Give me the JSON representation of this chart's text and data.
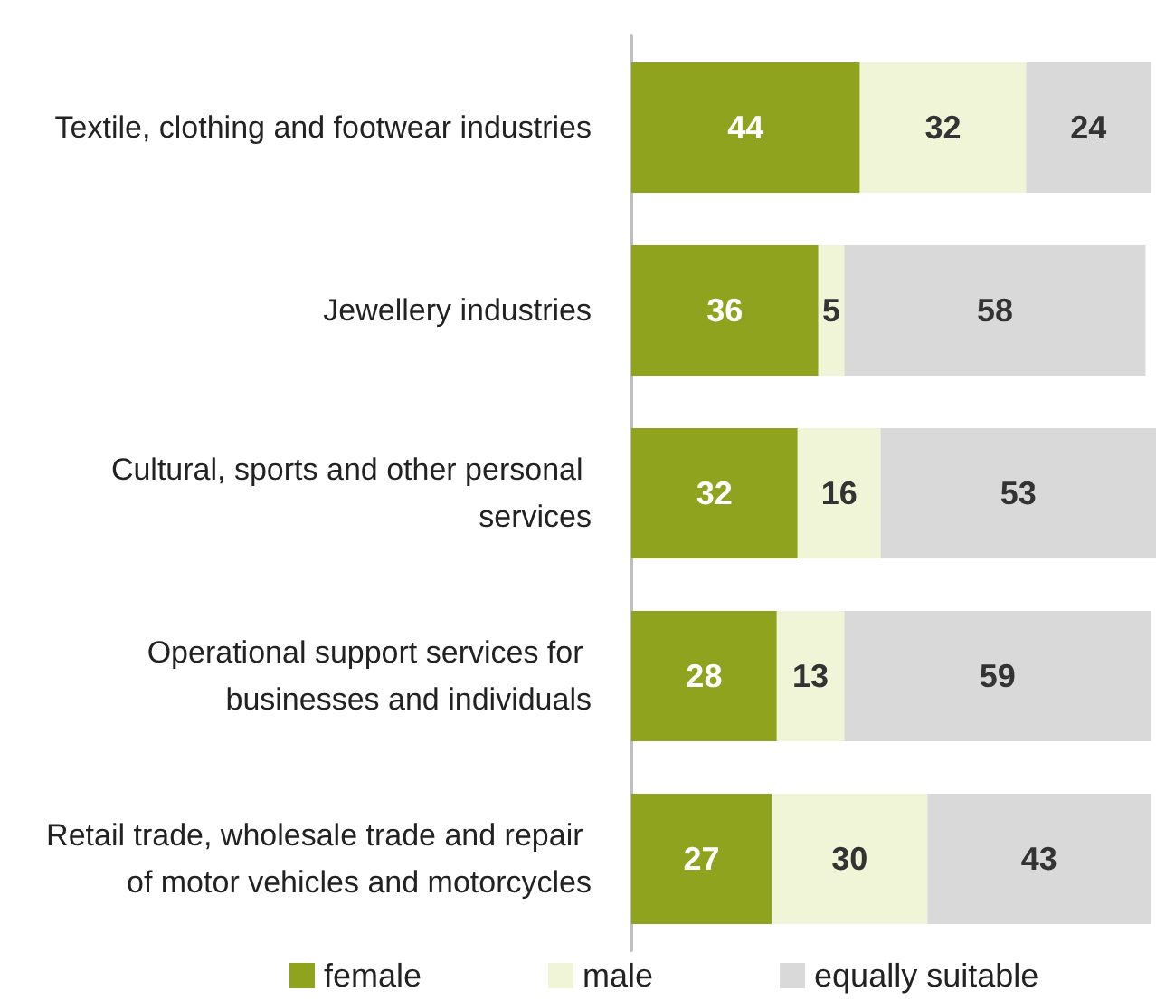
{
  "chart_data": {
    "type": "bar",
    "orientation": "horizontal",
    "stacked": true,
    "data_labels": true,
    "legend": "bottom",
    "grid": false,
    "xlim": [
      0,
      101
    ],
    "tick_labels": "y",
    "categories": [
      "Textile, clothing and footwear industries",
      "Jewellery industries",
      "Cultural, sports and other personal services",
      "Operational support services for businesses and individuals",
      "Retail trade, wholesale trade and repair of motor vehicles and motorcycles"
    ],
    "series": [
      {
        "name": "female",
        "color": "#8fa31e",
        "values": [
          44,
          36,
          32,
          28,
          27
        ]
      },
      {
        "name": "male",
        "color": "#f0f5d8",
        "values": [
          32,
          5,
          16,
          13,
          30
        ]
      },
      {
        "name": "equally suitable",
        "color": "#d9d9d9",
        "values": [
          24,
          58,
          53,
          59,
          43
        ]
      }
    ]
  }
}
